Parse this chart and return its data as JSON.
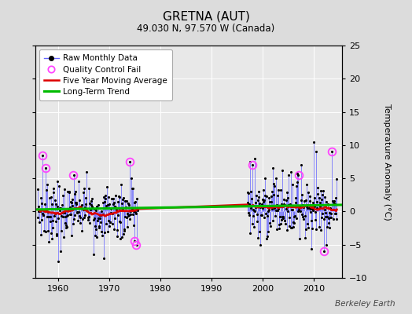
{
  "title": "GRETNA (AUT)",
  "subtitle": "49.030 N, 97.570 W (Canada)",
  "ylabel": "Temperature Anomaly (°C)",
  "watermark": "Berkeley Earth",
  "ylim": [
    -10,
    25
  ],
  "yticks": [
    -10,
    -5,
    0,
    5,
    10,
    15,
    20,
    25
  ],
  "xlim": [
    1955.5,
    2015.5
  ],
  "xticks": [
    1960,
    1970,
    1980,
    1990,
    2000,
    2010
  ],
  "bg_color": "#dcdcdc",
  "plot_bg_color": "#e8e8e8",
  "grid_color": "#ffffff",
  "raw_line_color": "#6666ff",
  "raw_dot_color": "#000000",
  "qc_fail_color": "#ff44ff",
  "moving_avg_color": "#dd0000",
  "trend_color": "#00bb00",
  "seed": 7
}
